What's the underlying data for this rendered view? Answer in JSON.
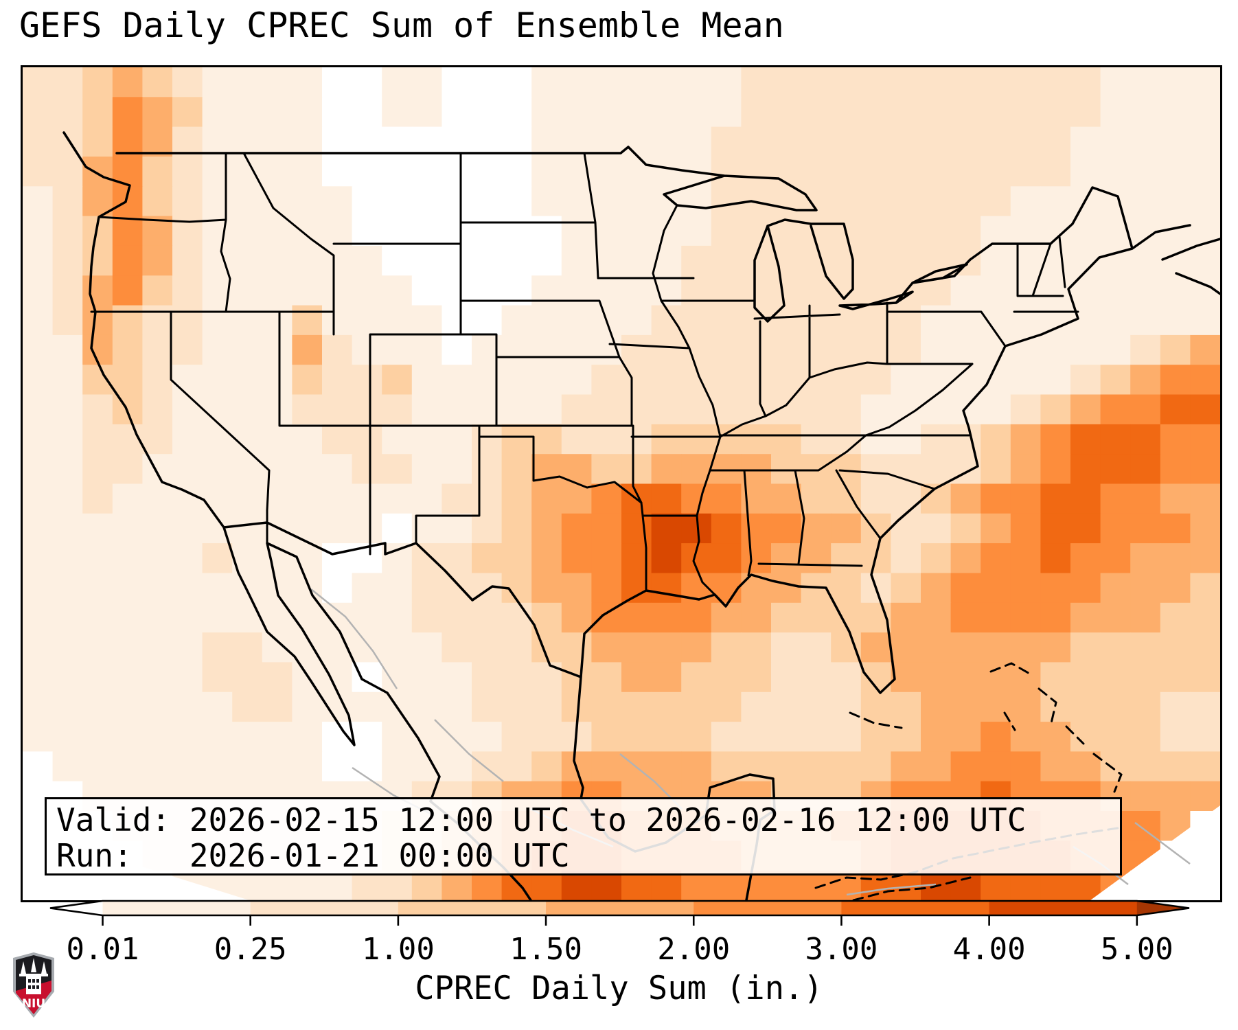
{
  "title": "GEFS Daily CPREC Sum of Ensemble Mean",
  "info_box": {
    "line1": "Valid: 2026-02-15 12:00 UTC to 2026-02-16 12:00 UTC",
    "line2": "Run:   2026-01-21 00:00 UTC"
  },
  "colorbar": {
    "label": "CPREC Daily Sum (in.)",
    "ticks": [
      "0.01",
      "0.25",
      "1.00",
      "1.50",
      "2.00",
      "3.00",
      "4.00",
      "5.00"
    ],
    "tick_values": [
      0.01,
      0.25,
      1.0,
      1.5,
      2.0,
      3.0,
      4.0,
      5.0
    ],
    "segment_colors": [
      "#fdf0e2",
      "#fde3c8",
      "#fdd0a2",
      "#fdae6b",
      "#fd8d3c",
      "#f16913",
      "#d94801"
    ],
    "under_color": "#ffffff",
    "over_color": "#a63603",
    "outline_color": "#000000"
  },
  "logo": {
    "text": "NIU",
    "shield_border": "#a7abb0",
    "shield_top": "#1b1b1f",
    "shield_band": "#c8102e",
    "castle_color": "#ffffff"
  },
  "chart_data": {
    "type": "heatmap",
    "title": "GEFS Daily CPREC Sum of Ensemble Mean",
    "units": "in.",
    "legend_bins": [
      {
        "level": 0,
        "range": "< 0.01",
        "color": "#ffffff"
      },
      {
        "level": 1,
        "range": "0.01 - 0.25",
        "color": "#fdf0e2"
      },
      {
        "level": 2,
        "range": "0.25 - 1.00",
        "color": "#fde3c8"
      },
      {
        "level": 3,
        "range": "1.00 - 1.50",
        "color": "#fdd0a2"
      },
      {
        "level": 4,
        "range": "1.50 - 2.00",
        "color": "#fdae6b"
      },
      {
        "level": 5,
        "range": "2.00 - 3.00",
        "color": "#fd8d3c"
      },
      {
        "level": 6,
        "range": "3.00 - 4.00",
        "color": "#f16913"
      },
      {
        "level": 7,
        "range": "4.00 - 5.00",
        "color": "#d94801"
      },
      {
        "level": 8,
        "range": "> 5.00",
        "color": "#a63603"
      }
    ],
    "palette": {
      "0": "#ffffff",
      "1": "#fdf0e2",
      "2": "#fde3c8",
      "3": "#fdd0a2",
      "4": "#fdae6b",
      "5": "#fd8d3c",
      "6": "#f16913",
      "7": "#d94801",
      "8": "#a63603"
    },
    "grid_cols": 40,
    "grid_rows": 28,
    "grid": [
      "2234321111001100011111112222222222221111",
      "2235431111001100011111112222222222221111",
      "2235421111000000011111122222222222211111",
      "2245321111000000011111122222222222211111",
      "1245321111100000011111122222222221111111",
      "1235421111100000001111122222222211111111",
      "1235421111110000001111222222222211111111",
      "1245321111111000011111222222222111111111",
      "1243221113111100111112222222221111111111",
      "1143221114211101111122222222221111111234",
      "1133211113223111111222222222211111123455",
      "1123211112222111112222222222111112345566",
      "1122211111221112332223333322112234566655",
      "1122111111122112344334444333222234566655",
      "1121111111111122344566554433223455665544",
      "1111111111110112345567765544322345665554",
      "1111112111001223345567665443323455655444",
      "1111111111011222344566554433234555554443",
      "1111111111111222234555544333344555544433",
      "1111112211111122233444433223444444433333",
      "1111112221101112223344333222344444333333",
      "1111111221111112223333332222334444333322",
      "1111111111001111222333322222334454433322",
      "0111111111001112234444433333344555443333",
      "0011111111111223445544444333455565554444",
      "0001111111112234556655544445566666555540",
      "0000111111112234566655554444566666655500",
      "0000011111122345667766555555667766665000"
    ],
    "notable_features": [
      "Heavy band (3-5+ in.) over Arkansas / Louisiana / Mississippi",
      "Orange band along Pacific Northwest coast (WA/OR/N-CA)",
      "Broad offshore Atlantic band southeast of the coast",
      "Orange band along the southern Gulf of Mexico at bottom of map",
      "Dry (white) areas over Montana / Dakotas and west Texas"
    ]
  }
}
